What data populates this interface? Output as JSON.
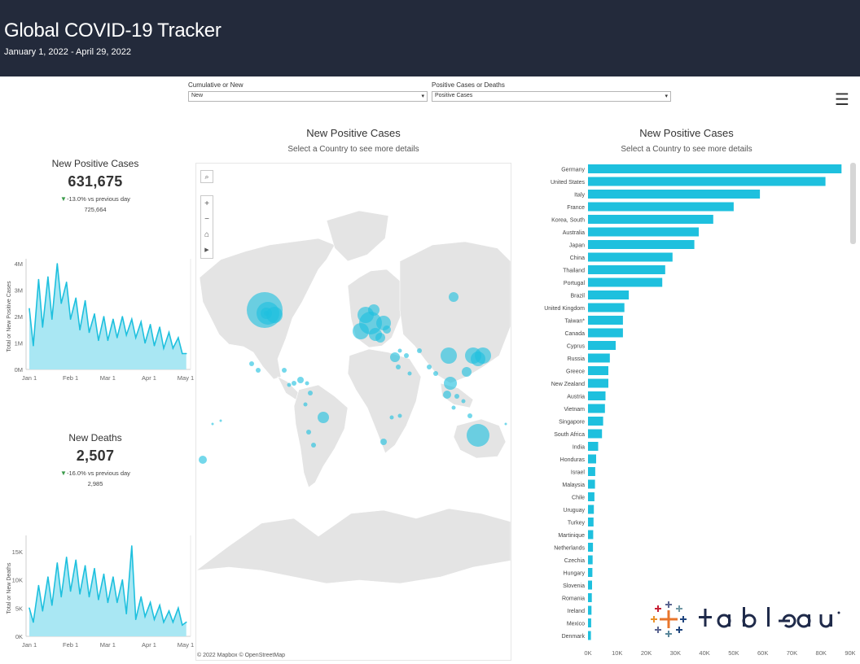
{
  "header": {
    "title": "Global COVID-19 Tracker",
    "subtitle": "January 1, 2022 - April 29, 2022"
  },
  "filters": [
    {
      "label": "Cumulative or New",
      "value": "New"
    },
    {
      "label": "Positive Cases or Deaths",
      "value": "Positive Cases"
    }
  ],
  "menu_icon": "hamburger-menu-icon",
  "kpis": {
    "cases": {
      "title": "New Positive Cases",
      "value": "631,675",
      "delta": "-13.0% vs previous day",
      "previous": "725,664"
    },
    "deaths": {
      "title": "New Deaths",
      "value": "2,507",
      "delta": "-16.0% vs previous day",
      "previous": "2,985"
    }
  },
  "map_panel": {
    "title": "New Positive Cases",
    "subtitle": "Select a Country to see more details",
    "credits": "© 2022 Mapbox © OpenStreetMap",
    "icons": [
      "search-icon",
      "zoom-in-icon",
      "zoom-out-icon",
      "home-icon",
      "play-arrow-icon"
    ]
  },
  "bar_panel": {
    "title": "New Positive Cases",
    "subtitle": "Select a Country to see more details"
  },
  "colors": {
    "accent": "#1ec0de",
    "area_fill": "#a9e7f3",
    "header_bg": "#232a3b"
  },
  "chart_data": [
    {
      "type": "area",
      "ylabel": "Total or New Positive Cases",
      "x_ticks": [
        "Jan 1",
        "Feb 1",
        "Mar 1",
        "Apr 1",
        "May 1"
      ],
      "y_ticks": [
        "0M",
        "1M",
        "2M",
        "3M",
        "4M"
      ],
      "ylim": [
        0,
        4000000
      ],
      "x": [
        1,
        4,
        8,
        11,
        15,
        18,
        22,
        25,
        29,
        32,
        36,
        39,
        43,
        46,
        50,
        53,
        57,
        60,
        64,
        67,
        71,
        74,
        78,
        81,
        85,
        88,
        92,
        95,
        99,
        102,
        106,
        109,
        113,
        116,
        119
      ],
      "values": [
        2300000,
        900000,
        3400000,
        1600000,
        3500000,
        1900000,
        4000000,
        2500000,
        3300000,
        1900000,
        2700000,
        1500000,
        2600000,
        1400000,
        2100000,
        1100000,
        2000000,
        1100000,
        1900000,
        1200000,
        2000000,
        1300000,
        1900000,
        1200000,
        1800000,
        1000000,
        1700000,
        900000,
        1600000,
        800000,
        1400000,
        800000,
        1200000,
        600000,
        600000
      ]
    },
    {
      "type": "area",
      "ylabel": "Total or New Deaths",
      "x_ticks": [
        "Jan 1",
        "Feb 1",
        "Mar 1",
        "Apr 1",
        "May 1"
      ],
      "y_ticks": [
        "0K",
        "5K",
        "10K",
        "15K"
      ],
      "ylim": [
        0,
        17000
      ],
      "x": [
        1,
        4,
        8,
        11,
        15,
        18,
        22,
        25,
        29,
        32,
        36,
        39,
        43,
        46,
        50,
        53,
        57,
        60,
        64,
        67,
        71,
        74,
        78,
        81,
        85,
        88,
        92,
        95,
        99,
        102,
        106,
        109,
        113,
        116,
        119
      ],
      "values": [
        5000,
        2500,
        9000,
        4500,
        10500,
        5500,
        13000,
        7000,
        14000,
        8000,
        13500,
        7500,
        12500,
        7000,
        12000,
        6500,
        11000,
        6000,
        10500,
        6000,
        10000,
        4000,
        16000,
        3000,
        7000,
        3500,
        6000,
        3000,
        5500,
        2500,
        4500,
        2500,
        5000,
        2000,
        2500
      ]
    },
    {
      "type": "bar",
      "orientation": "horizontal",
      "categories": [
        "Germany",
        "United States",
        "Italy",
        "France",
        "Korea, South",
        "Australia",
        "Japan",
        "China",
        "Thailand",
        "Portugal",
        "Brazil",
        "United Kingdom",
        "Taiwan*",
        "Canada",
        "Cyprus",
        "Russia",
        "Greece",
        "New Zealand",
        "Austria",
        "Vietnam",
        "Singapore",
        "South Africa",
        "India",
        "Honduras",
        "Israel",
        "Malaysia",
        "Chile",
        "Uruguay",
        "Turkey",
        "Martinique",
        "Netherlands",
        "Czechia",
        "Hungary",
        "Slovenia",
        "Romania",
        "Ireland",
        "Mexico",
        "Denmark"
      ],
      "values": [
        87000,
        81500,
        59000,
        50000,
        43000,
        38000,
        36500,
        29000,
        26500,
        25500,
        14000,
        12500,
        12000,
        12000,
        9500,
        7500,
        7000,
        7000,
        6000,
        5800,
        5200,
        4800,
        3500,
        2800,
        2500,
        2400,
        2200,
        2000,
        1900,
        1800,
        1700,
        1600,
        1500,
        1400,
        1300,
        1200,
        1100,
        1000
      ],
      "x_ticks": [
        "0K",
        "10K",
        "20K",
        "30K",
        "40K",
        "50K",
        "60K",
        "70K",
        "80K",
        "90K"
      ],
      "xlim": [
        0,
        90000
      ]
    }
  ]
}
